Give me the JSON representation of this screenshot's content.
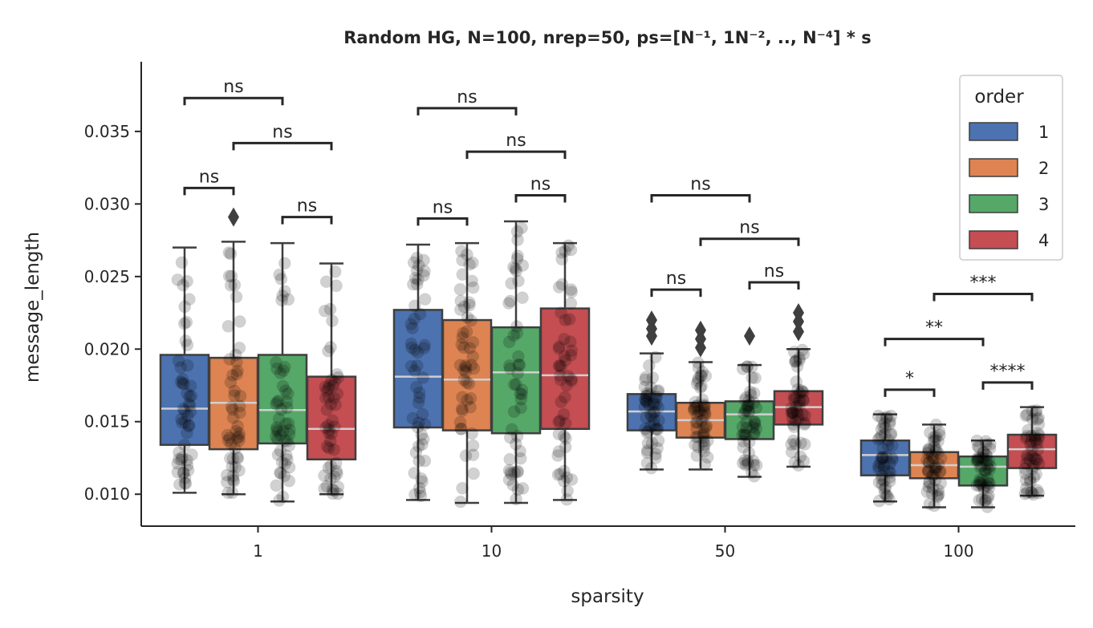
{
  "chart_data": {
    "type": "box",
    "title": "Random HG, N=100, nrep=50, ps=[N⁻¹, 1N⁻², ..,  N⁻⁴] * s",
    "xlabel": "sparsity",
    "ylabel": "message_length",
    "categories": [
      "1",
      "10",
      "50",
      "100"
    ],
    "ylim": [
      0.0078,
      0.0398
    ],
    "yticks": [
      0.01,
      0.015,
      0.02,
      0.025,
      0.03,
      0.035
    ],
    "ytick_labels": [
      "0.010",
      "0.015",
      "0.020",
      "0.025",
      "0.030",
      "0.035"
    ],
    "legend": {
      "title": "order",
      "position": "top-right",
      "entries": [
        "1",
        "2",
        "3",
        "4"
      ]
    },
    "colors": {
      "1": "#4c72b0",
      "2": "#dd8452",
      "3": "#55a868",
      "4": "#c44e52"
    },
    "groups": [
      {
        "category": "1",
        "boxes": [
          {
            "order": "1",
            "whislo": 0.0101,
            "q1": 0.0134,
            "median": 0.0159,
            "q3": 0.0196,
            "whishi": 0.027,
            "fliers": []
          },
          {
            "order": "2",
            "whislo": 0.01,
            "q1": 0.0131,
            "median": 0.0163,
            "q3": 0.0194,
            "whishi": 0.0274,
            "fliers": [
              0.0291
            ]
          },
          {
            "order": "3",
            "whislo": 0.0095,
            "q1": 0.0135,
            "median": 0.0158,
            "q3": 0.0196,
            "whishi": 0.0273,
            "fliers": []
          },
          {
            "order": "4",
            "whislo": 0.01,
            "q1": 0.0124,
            "median": 0.0145,
            "q3": 0.0181,
            "whishi": 0.0259,
            "fliers": []
          }
        ],
        "annotations": [
          {
            "from": 1,
            "to": 2,
            "label": "ns",
            "y": 0.0311
          },
          {
            "from": 3,
            "to": 4,
            "label": "ns",
            "y": 0.0291
          },
          {
            "from": 2,
            "to": 4,
            "label": "ns",
            "y": 0.0342
          },
          {
            "from": 1,
            "to": 3,
            "label": "ns",
            "y": 0.0373
          }
        ]
      },
      {
        "category": "10",
        "boxes": [
          {
            "order": "1",
            "whislo": 0.0096,
            "q1": 0.0146,
            "median": 0.0181,
            "q3": 0.0227,
            "whishi": 0.0272,
            "fliers": []
          },
          {
            "order": "2",
            "whislo": 0.0094,
            "q1": 0.0144,
            "median": 0.0179,
            "q3": 0.022,
            "whishi": 0.0273,
            "fliers": []
          },
          {
            "order": "3",
            "whislo": 0.0094,
            "q1": 0.0142,
            "median": 0.0184,
            "q3": 0.0215,
            "whishi": 0.0288,
            "fliers": []
          },
          {
            "order": "4",
            "whislo": 0.0096,
            "q1": 0.0145,
            "median": 0.0182,
            "q3": 0.0228,
            "whishi": 0.0273,
            "fliers": []
          }
        ],
        "annotations": [
          {
            "from": 1,
            "to": 2,
            "label": "ns",
            "y": 0.029
          },
          {
            "from": 3,
            "to": 4,
            "label": "ns",
            "y": 0.0306
          },
          {
            "from": 2,
            "to": 4,
            "label": "ns",
            "y": 0.0336
          },
          {
            "from": 1,
            "to": 3,
            "label": "ns",
            "y": 0.0366
          }
        ]
      },
      {
        "category": "50",
        "boxes": [
          {
            "order": "1",
            "whislo": 0.0117,
            "q1": 0.0144,
            "median": 0.0157,
            "q3": 0.0169,
            "whishi": 0.0197,
            "fliers": [
              0.0209,
              0.0214,
              0.022
            ]
          },
          {
            "order": "2",
            "whislo": 0.0117,
            "q1": 0.0139,
            "median": 0.0151,
            "q3": 0.0163,
            "whishi": 0.0191,
            "fliers": [
              0.0201,
              0.0207,
              0.0213
            ]
          },
          {
            "order": "3",
            "whislo": 0.0112,
            "q1": 0.0138,
            "median": 0.0155,
            "q3": 0.0164,
            "whishi": 0.0189,
            "fliers": [
              0.0209
            ]
          },
          {
            "order": "4",
            "whislo": 0.0119,
            "q1": 0.0148,
            "median": 0.016,
            "q3": 0.0171,
            "whishi": 0.02,
            "fliers": [
              0.0212,
              0.0219,
              0.0225
            ]
          }
        ],
        "annotations": [
          {
            "from": 1,
            "to": 2,
            "label": "ns",
            "y": 0.0241
          },
          {
            "from": 3,
            "to": 4,
            "label": "ns",
            "y": 0.0246
          },
          {
            "from": 2,
            "to": 4,
            "label": "ns",
            "y": 0.0276
          },
          {
            "from": 1,
            "to": 3,
            "label": "ns",
            "y": 0.0306
          }
        ]
      },
      {
        "category": "100",
        "boxes": [
          {
            "order": "1",
            "whislo": 0.0095,
            "q1": 0.0113,
            "median": 0.0127,
            "q3": 0.0137,
            "whishi": 0.0155,
            "fliers": []
          },
          {
            "order": "2",
            "whislo": 0.0091,
            "q1": 0.0111,
            "median": 0.012,
            "q3": 0.0129,
            "whishi": 0.0148,
            "fliers": []
          },
          {
            "order": "3",
            "whislo": 0.0091,
            "q1": 0.0106,
            "median": 0.0119,
            "q3": 0.0126,
            "whishi": 0.0137,
            "fliers": []
          },
          {
            "order": "4",
            "whislo": 0.0099,
            "q1": 0.0118,
            "median": 0.0131,
            "q3": 0.0141,
            "whishi": 0.016,
            "fliers": []
          }
        ],
        "annotations": [
          {
            "from": 1,
            "to": 2,
            "label": "*",
            "y": 0.0172
          },
          {
            "from": 3,
            "to": 4,
            "label": "****",
            "y": 0.0177
          },
          {
            "from": 1,
            "to": 3,
            "label": "**",
            "y": 0.0207
          },
          {
            "from": 2,
            "to": 4,
            "label": "***",
            "y": 0.0238
          }
        ]
      }
    ]
  }
}
